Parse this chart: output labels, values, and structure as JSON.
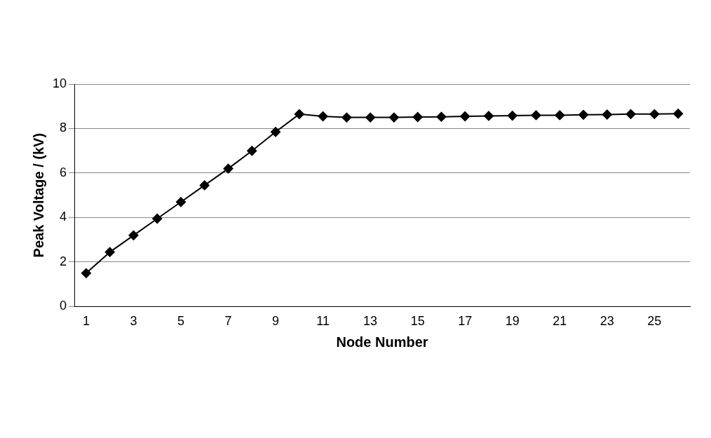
{
  "chart_data": {
    "type": "line",
    "xlabel": "Node Number",
    "ylabel": "Peak Voltage / (kV)",
    "x": [
      1,
      2,
      3,
      4,
      5,
      6,
      7,
      8,
      9,
      10,
      11,
      12,
      13,
      14,
      15,
      16,
      17,
      18,
      19,
      20,
      21,
      22,
      23,
      24,
      25,
      26
    ],
    "xlim": [
      0.5,
      26.5
    ],
    "xticks": [
      1,
      3,
      5,
      7,
      9,
      11,
      13,
      15,
      17,
      19,
      21,
      23,
      25
    ],
    "series": [
      {
        "color": "#000000",
        "values": [
          1.5,
          2.45,
          3.2,
          3.95,
          4.7,
          5.45,
          6.2,
          7.0,
          7.85,
          8.65,
          8.55,
          8.5,
          8.5,
          8.5,
          8.52,
          8.53,
          8.55,
          8.57,
          8.58,
          8.6,
          8.6,
          8.62,
          8.63,
          8.65,
          8.65,
          8.67
        ]
      }
    ],
    "ylim": [
      0,
      10
    ],
    "yticks": [
      0,
      2,
      4,
      6,
      8,
      10
    ],
    "grid": "y",
    "legend": false,
    "marker": "diamond",
    "line_style": "solid"
  }
}
